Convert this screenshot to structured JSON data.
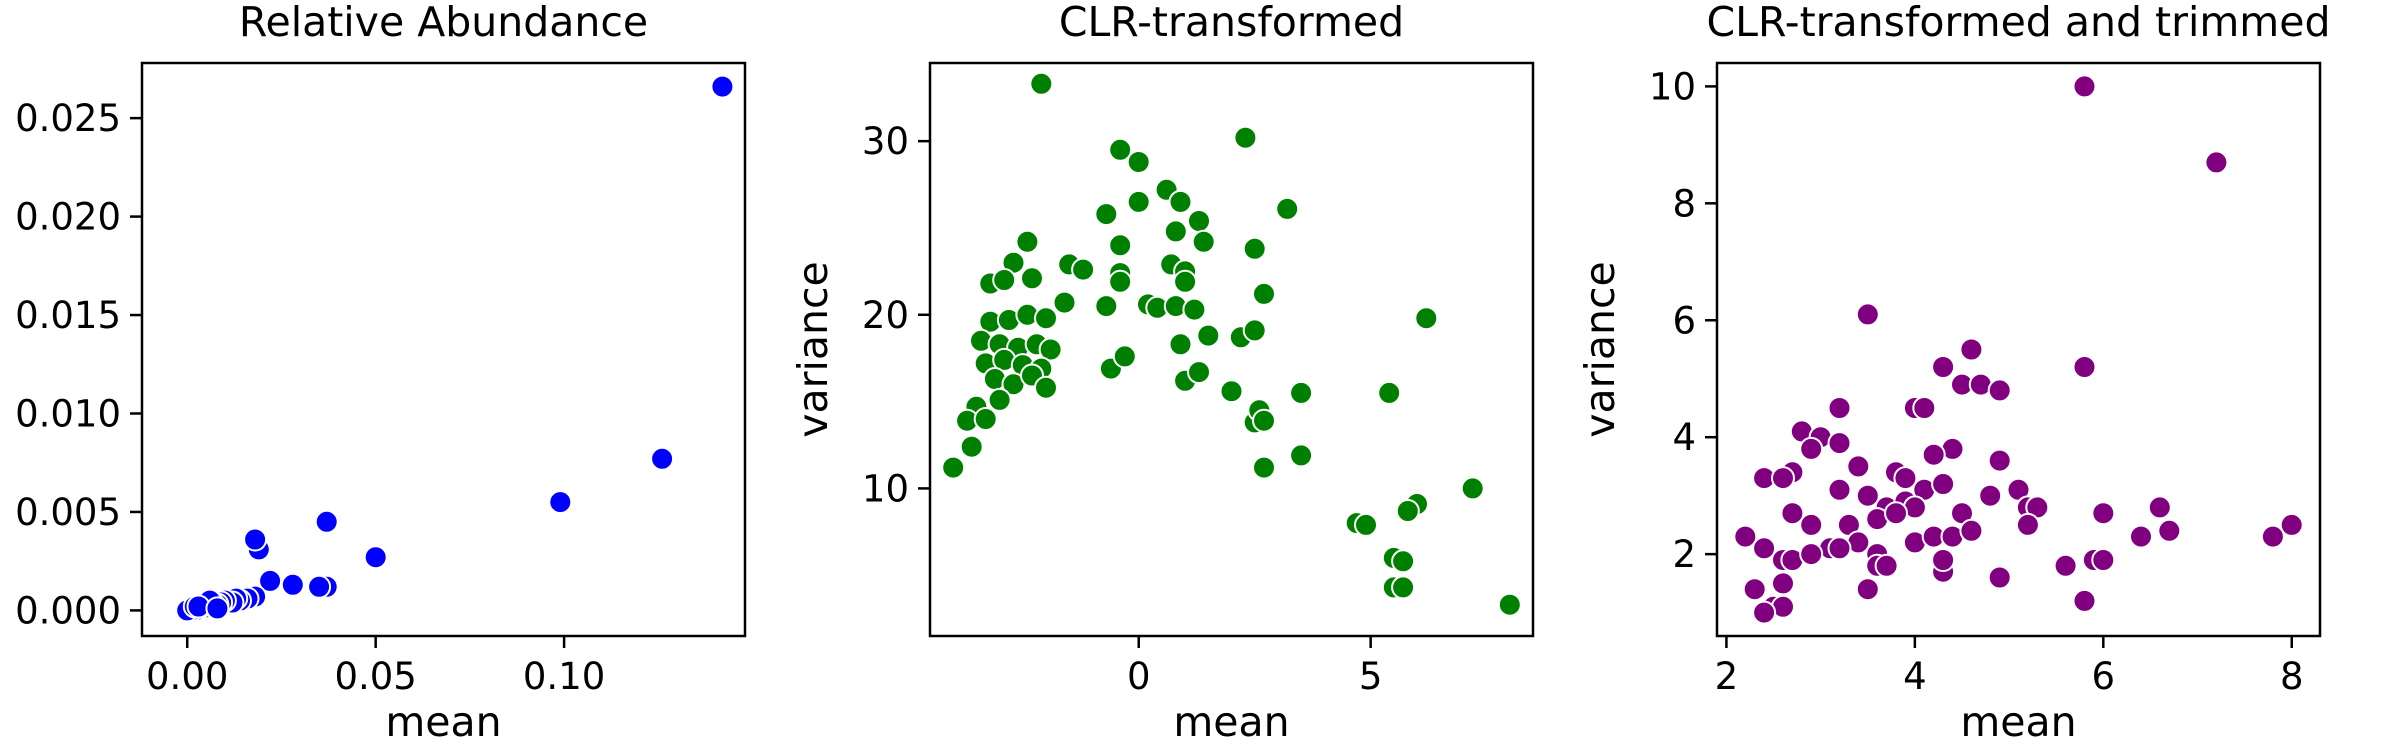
{
  "chart_data": [
    {
      "type": "scatter",
      "title": "Relative Abundance",
      "xlabel": "mean",
      "ylabel": "",
      "xlim": [
        -0.012,
        0.148
      ],
      "ylim": [
        -0.0013,
        0.0278
      ],
      "xticks": [
        0.0,
        0.05,
        0.1
      ],
      "xtick_labels": [
        "0.00",
        "0.05",
        "0.10"
      ],
      "yticks": [
        0.0,
        0.005,
        0.01,
        0.015,
        0.02,
        0.025
      ],
      "ytick_labels": [
        "0.000",
        "0.005",
        "0.010",
        "0.015",
        "0.020",
        "0.025"
      ],
      "grid": false,
      "color": "#0000ff",
      "points": [
        [
          0.142,
          0.0266
        ],
        [
          0.126,
          0.0077
        ],
        [
          0.099,
          0.0055
        ],
        [
          0.05,
          0.0027
        ],
        [
          0.037,
          0.0045
        ],
        [
          0.037,
          0.0012
        ],
        [
          0.035,
          0.0012
        ],
        [
          0.028,
          0.0013
        ],
        [
          0.022,
          0.0015
        ],
        [
          0.019,
          0.0031
        ],
        [
          0.018,
          0.0036
        ],
        [
          0.018,
          0.0007
        ],
        [
          0.016,
          0.0006
        ],
        [
          0.014,
          0.0005
        ],
        [
          0.013,
          0.0006
        ],
        [
          0.012,
          0.0004
        ],
        [
          0.01,
          0.0005
        ],
        [
          0.009,
          0.0004
        ],
        [
          0.008,
          0.0003
        ],
        [
          0.007,
          0.0003
        ],
        [
          0.006,
          0.0002
        ],
        [
          0.005,
          0.0002
        ],
        [
          0.004,
          0.0001
        ],
        [
          0.003,
          0.0001
        ],
        [
          0.002,
          0.0
        ],
        [
          0.001,
          0.0
        ],
        [
          0.0,
          0.0
        ],
        [
          0.004,
          0.0003
        ],
        [
          0.006,
          0.0005
        ],
        [
          0.002,
          0.0002
        ],
        [
          0.003,
          0.0002
        ],
        [
          0.008,
          0.0001
        ]
      ]
    },
    {
      "type": "scatter",
      "title": "CLR-transformed",
      "xlabel": "mean",
      "ylabel": "variance",
      "xlim": [
        -4.5,
        8.5
      ],
      "ylim": [
        1.5,
        34.5
      ],
      "xticks": [
        0,
        5
      ],
      "xtick_labels": [
        "0",
        "5"
      ],
      "yticks": [
        10,
        20,
        30
      ],
      "ytick_labels": [
        "10",
        "20",
        "30"
      ],
      "grid": false,
      "color": "#008000",
      "points": [
        [
          -2.1,
          33.3
        ],
        [
          -0.4,
          29.5
        ],
        [
          0.0,
          28.8
        ],
        [
          2.3,
          30.2
        ],
        [
          0.6,
          27.2
        ],
        [
          0.9,
          26.5
        ],
        [
          0.0,
          26.5
        ],
        [
          3.2,
          26.1
        ],
        [
          1.3,
          25.4
        ],
        [
          -0.7,
          25.8
        ],
        [
          -2.4,
          24.2
        ],
        [
          -0.4,
          24.0
        ],
        [
          0.8,
          24.8
        ],
        [
          1.4,
          24.2
        ],
        [
          2.5,
          23.8
        ],
        [
          -2.7,
          23.0
        ],
        [
          -1.5,
          22.9
        ],
        [
          -1.2,
          22.6
        ],
        [
          -0.4,
          22.4
        ],
        [
          0.7,
          22.9
        ],
        [
          1.0,
          22.5
        ],
        [
          -3.2,
          21.8
        ],
        [
          -2.9,
          22.0
        ],
        [
          -2.3,
          22.1
        ],
        [
          -0.4,
          21.9
        ],
        [
          1.0,
          21.9
        ],
        [
          2.7,
          21.2
        ],
        [
          -1.6,
          20.7
        ],
        [
          -0.7,
          20.5
        ],
        [
          0.2,
          20.6
        ],
        [
          0.4,
          20.4
        ],
        [
          0.8,
          20.5
        ],
        [
          1.2,
          20.3
        ],
        [
          -3.2,
          19.6
        ],
        [
          -2.8,
          19.7
        ],
        [
          -2.4,
          20.0
        ],
        [
          -2.0,
          19.8
        ],
        [
          -3.4,
          18.5
        ],
        [
          -3.0,
          18.3
        ],
        [
          -2.6,
          18.1
        ],
        [
          -2.2,
          18.3
        ],
        [
          -1.9,
          18.0
        ],
        [
          -3.3,
          17.2
        ],
        [
          -2.9,
          17.4
        ],
        [
          -2.5,
          17.1
        ],
        [
          -2.1,
          16.9
        ],
        [
          -3.1,
          16.3
        ],
        [
          -2.7,
          16.0
        ],
        [
          -2.3,
          16.5
        ],
        [
          -2.0,
          15.8
        ],
        [
          -3.0,
          15.1
        ],
        [
          -3.5,
          14.7
        ],
        [
          -3.7,
          13.9
        ],
        [
          -3.3,
          14.0
        ],
        [
          -3.6,
          12.4
        ],
        [
          -4.0,
          11.2
        ],
        [
          -0.6,
          16.9
        ],
        [
          -0.3,
          17.6
        ],
        [
          0.9,
          18.3
        ],
        [
          1.5,
          18.8
        ],
        [
          2.2,
          18.7
        ],
        [
          2.5,
          19.1
        ],
        [
          6.2,
          19.8
        ],
        [
          1.0,
          16.2
        ],
        [
          1.3,
          16.7
        ],
        [
          2.0,
          15.6
        ],
        [
          3.5,
          15.5
        ],
        [
          5.4,
          15.5
        ],
        [
          2.5,
          13.8
        ],
        [
          2.6,
          14.5
        ],
        [
          2.7,
          13.9
        ],
        [
          3.5,
          11.9
        ],
        [
          2.7,
          11.2
        ],
        [
          7.2,
          10.0
        ],
        [
          6.0,
          9.1
        ],
        [
          5.8,
          8.7
        ],
        [
          4.7,
          8.0
        ],
        [
          4.9,
          7.9
        ],
        [
          5.5,
          6.0
        ],
        [
          5.7,
          5.8
        ],
        [
          5.5,
          4.3
        ],
        [
          5.7,
          4.3
        ],
        [
          8.0,
          3.3
        ]
      ]
    },
    {
      "type": "scatter",
      "title": "CLR-transformed and trimmed",
      "xlabel": "mean",
      "ylabel": "variance",
      "xlim": [
        1.9,
        8.3
      ],
      "ylim": [
        0.6,
        10.4
      ],
      "xticks": [
        2,
        4,
        6,
        8
      ],
      "xtick_labels": [
        "2",
        "4",
        "6",
        "8"
      ],
      "yticks": [
        2,
        4,
        6,
        8,
        10
      ],
      "ytick_labels": [
        "2",
        "4",
        "6",
        "8",
        "10"
      ],
      "grid": false,
      "color": "#800080",
      "points": [
        [
          5.8,
          10.0
        ],
        [
          7.2,
          8.7
        ],
        [
          3.5,
          6.1
        ],
        [
          4.6,
          5.5
        ],
        [
          4.3,
          5.2
        ],
        [
          5.8,
          5.2
        ],
        [
          4.5,
          4.9
        ],
        [
          4.7,
          4.9
        ],
        [
          4.9,
          4.8
        ],
        [
          4.0,
          4.5
        ],
        [
          4.1,
          4.5
        ],
        [
          3.2,
          4.5
        ],
        [
          2.8,
          4.1
        ],
        [
          3.0,
          4.0
        ],
        [
          3.2,
          3.9
        ],
        [
          2.9,
          3.8
        ],
        [
          4.4,
          3.8
        ],
        [
          4.2,
          3.7
        ],
        [
          4.9,
          3.6
        ],
        [
          2.7,
          3.4
        ],
        [
          3.4,
          3.5
        ],
        [
          3.8,
          3.4
        ],
        [
          2.4,
          3.3
        ],
        [
          2.6,
          3.3
        ],
        [
          3.9,
          3.3
        ],
        [
          4.1,
          3.1
        ],
        [
          4.3,
          3.2
        ],
        [
          5.1,
          3.1
        ],
        [
          3.2,
          3.1
        ],
        [
          3.5,
          3.0
        ],
        [
          3.7,
          2.8
        ],
        [
          3.9,
          2.9
        ],
        [
          4.0,
          2.8
        ],
        [
          4.8,
          3.0
        ],
        [
          5.2,
          2.8
        ],
        [
          5.3,
          2.8
        ],
        [
          6.0,
          2.7
        ],
        [
          6.6,
          2.8
        ],
        [
          2.7,
          2.7
        ],
        [
          2.9,
          2.5
        ],
        [
          3.3,
          2.5
        ],
        [
          3.6,
          2.6
        ],
        [
          3.8,
          2.7
        ],
        [
          4.5,
          2.7
        ],
        [
          2.2,
          2.3
        ],
        [
          2.4,
          2.1
        ],
        [
          3.1,
          2.1
        ],
        [
          3.4,
          2.2
        ],
        [
          3.6,
          2.0
        ],
        [
          4.0,
          2.2
        ],
        [
          4.2,
          2.3
        ],
        [
          4.4,
          2.3
        ],
        [
          4.6,
          2.4
        ],
        [
          6.4,
          2.3
        ],
        [
          6.7,
          2.4
        ],
        [
          7.8,
          2.3
        ],
        [
          8.0,
          2.5
        ],
        [
          5.2,
          2.5
        ],
        [
          2.6,
          1.9
        ],
        [
          2.7,
          1.9
        ],
        [
          2.9,
          2.0
        ],
        [
          3.2,
          2.1
        ],
        [
          3.6,
          1.8
        ],
        [
          3.7,
          1.8
        ],
        [
          4.3,
          1.7
        ],
        [
          4.3,
          1.9
        ],
        [
          5.9,
          1.9
        ],
        [
          6.0,
          1.9
        ],
        [
          5.6,
          1.8
        ],
        [
          4.9,
          1.6
        ],
        [
          2.6,
          1.5
        ],
        [
          3.5,
          1.4
        ],
        [
          2.3,
          1.4
        ],
        [
          5.8,
          1.2
        ],
        [
          2.5,
          1.1
        ],
        [
          2.6,
          1.1
        ],
        [
          2.4,
          1.0
        ]
      ]
    }
  ]
}
